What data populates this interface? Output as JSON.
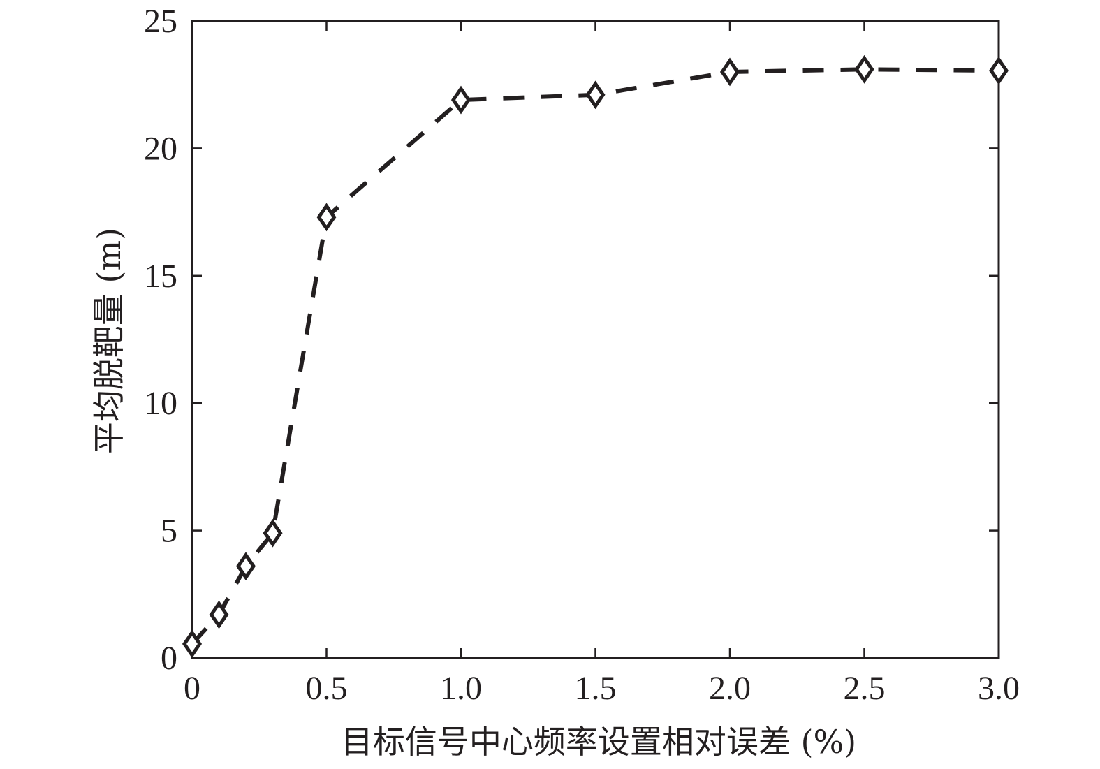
{
  "chart_data": {
    "type": "line",
    "title": "",
    "xlabel": "目标信号中心频率设置相对误差 (%)",
    "ylabel": "平均脱靶量 (m)",
    "xlim": [
      0,
      3.0
    ],
    "ylim": [
      0,
      25
    ],
    "xticks": [
      0,
      0.5,
      1.0,
      1.5,
      2.0,
      2.5,
      3.0
    ],
    "xtick_labels": [
      "0",
      "0.5",
      "1.0",
      "1.5",
      "2.0",
      "2.5",
      "3.0"
    ],
    "yticks": [
      0,
      5,
      10,
      15,
      20,
      25
    ],
    "ytick_labels": [
      "0",
      "5",
      "10",
      "15",
      "20",
      "25"
    ],
    "grid": false,
    "legend": "none",
    "series": [
      {
        "line_style": "dashed",
        "marker": "diamond",
        "color": "#231f20",
        "x": [
          0,
          0.1,
          0.2,
          0.3,
          0.5,
          1.0,
          1.5,
          2.0,
          2.5,
          3.0
        ],
        "y": [
          0.55,
          1.7,
          3.6,
          4.9,
          17.3,
          21.9,
          22.1,
          23.0,
          23.1,
          23.05
        ]
      }
    ]
  }
}
